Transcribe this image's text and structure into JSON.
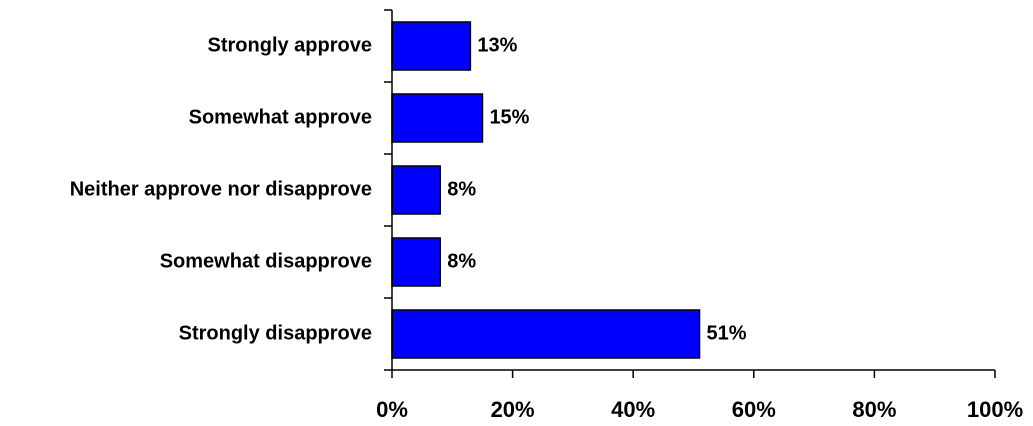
{
  "chart_data": {
    "type": "bar",
    "orientation": "horizontal",
    "categories": [
      "Strongly approve",
      "Somewhat approve",
      "Neither approve nor disapprove",
      "Somewhat disapprove",
      "Strongly disapprove"
    ],
    "values": [
      13,
      15,
      8,
      8,
      51
    ],
    "value_labels": [
      "13%",
      "15%",
      "8%",
      "8%",
      "51%"
    ],
    "xlim": [
      0,
      100
    ],
    "xticks": [
      0,
      20,
      40,
      60,
      80,
      100
    ],
    "xtick_labels": [
      "0%",
      "20%",
      "40%",
      "60%",
      "80%",
      "100%"
    ],
    "grid": false,
    "legend": "none",
    "colors": {
      "bar_fill": "#0000ff",
      "bar_stroke": "#000000",
      "axis": "#000000",
      "text": "#000000"
    }
  }
}
